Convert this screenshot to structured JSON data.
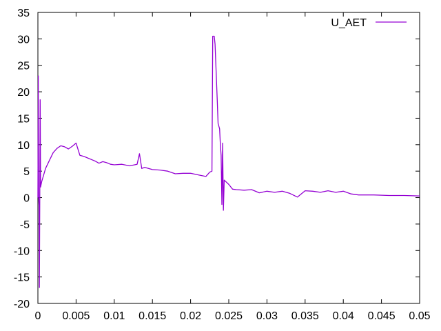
{
  "chart_data": {
    "type": "line",
    "title": "",
    "xlabel": "",
    "ylabel": "",
    "xlim": [
      0,
      0.05
    ],
    "ylim": [
      -20,
      35
    ],
    "grid": false,
    "legend_placement": "top-right",
    "x_ticks": [
      "0",
      "0.005",
      "0.01",
      "0.015",
      "0.02",
      "0.025",
      "0.03",
      "0.035",
      "0.04",
      "0.045",
      "0.05"
    ],
    "y_ticks": [
      "-20",
      "-15",
      "-10",
      "-5",
      "0",
      "5",
      "10",
      "15",
      "20",
      "25",
      "30",
      "35"
    ],
    "x_tick_values": [
      0,
      0.005,
      0.01,
      0.015,
      0.02,
      0.025,
      0.03,
      0.035,
      0.04,
      0.045,
      0.05
    ],
    "y_tick_values": [
      -20,
      -15,
      -10,
      -5,
      0,
      5,
      10,
      15,
      20,
      25,
      30,
      35
    ],
    "series": [
      {
        "name": "U_AET",
        "color": "#9400d3",
        "points": [
          [
            0,
            0
          ],
          [
            5e-05,
            23
          ],
          [
            0.0001,
            0
          ],
          [
            0.00015,
            -1.5
          ],
          [
            0.0002,
            -17
          ],
          [
            0.00025,
            2
          ],
          [
            0.0003,
            18.5
          ],
          [
            0.00035,
            2
          ],
          [
            0.0005,
            3
          ],
          [
            0.001,
            5.5
          ],
          [
            0.0015,
            7
          ],
          [
            0.002,
            8.5
          ],
          [
            0.0025,
            9.3
          ],
          [
            0.003,
            9.8
          ],
          [
            0.0035,
            9.6
          ],
          [
            0.004,
            9.2
          ],
          [
            0.0045,
            9.7
          ],
          [
            0.005,
            10.3
          ],
          [
            0.0055,
            8
          ],
          [
            0.006,
            7.8
          ],
          [
            0.0065,
            7.5
          ],
          [
            0.007,
            7.2
          ],
          [
            0.0075,
            6.9
          ],
          [
            0.008,
            6.5
          ],
          [
            0.0085,
            6.8
          ],
          [
            0.009,
            6.6
          ],
          [
            0.0095,
            6.3
          ],
          [
            0.01,
            6.2
          ],
          [
            0.011,
            6.3
          ],
          [
            0.012,
            6.0
          ],
          [
            0.013,
            6.3
          ],
          [
            0.0133,
            8.3
          ],
          [
            0.0136,
            5.5
          ],
          [
            0.014,
            5.7
          ],
          [
            0.015,
            5.3
          ],
          [
            0.016,
            5.2
          ],
          [
            0.017,
            5.0
          ],
          [
            0.018,
            4.5
          ],
          [
            0.019,
            4.6
          ],
          [
            0.02,
            4.6
          ],
          [
            0.021,
            4.3
          ],
          [
            0.022,
            4.0
          ],
          [
            0.0225,
            4.8
          ],
          [
            0.0228,
            5
          ],
          [
            0.0229,
            30.5
          ],
          [
            0.0231,
            30.5
          ],
          [
            0.0232,
            29
          ],
          [
            0.0235,
            18
          ],
          [
            0.0236,
            14
          ],
          [
            0.0238,
            13
          ],
          [
            0.0239,
            10
          ],
          [
            0.024,
            8
          ],
          [
            0.0241,
            -1.3
          ],
          [
            0.0242,
            10.3
          ],
          [
            0.0243,
            -2.4
          ],
          [
            0.0244,
            3.3
          ],
          [
            0.025,
            2.5
          ],
          [
            0.0255,
            1.6
          ],
          [
            0.026,
            1.5
          ],
          [
            0.027,
            1.4
          ],
          [
            0.028,
            1.5
          ],
          [
            0.029,
            0.9
          ],
          [
            0.03,
            1.2
          ],
          [
            0.031,
            1.0
          ],
          [
            0.032,
            1.2
          ],
          [
            0.033,
            0.8
          ],
          [
            0.034,
            0.1
          ],
          [
            0.035,
            1.3
          ],
          [
            0.036,
            1.2
          ],
          [
            0.037,
            1.0
          ],
          [
            0.038,
            1.3
          ],
          [
            0.039,
            1.0
          ],
          [
            0.04,
            1.2
          ],
          [
            0.041,
            0.7
          ],
          [
            0.042,
            0.5
          ],
          [
            0.044,
            0.5
          ],
          [
            0.046,
            0.4
          ],
          [
            0.048,
            0.4
          ],
          [
            0.05,
            0.3
          ]
        ]
      }
    ]
  }
}
